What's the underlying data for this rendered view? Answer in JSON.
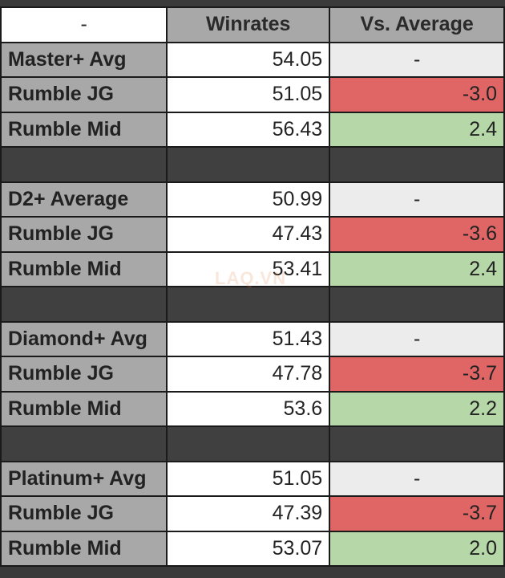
{
  "header": {
    "corner": "-",
    "col_winrates": "Winrates",
    "col_vs": "Vs. Average"
  },
  "groups": [
    {
      "avg": {
        "label": "Master+ Avg",
        "winrate": "54.05",
        "vs": "-"
      },
      "jg": {
        "label": "Rumble JG",
        "winrate": "51.05",
        "vs": "-3.0"
      },
      "mid": {
        "label": "Rumble Mid",
        "winrate": "56.43",
        "vs": "2.4"
      }
    },
    {
      "avg": {
        "label": "D2+ Average",
        "winrate": "50.99",
        "vs": "-"
      },
      "jg": {
        "label": "Rumble JG",
        "winrate": "47.43",
        "vs": "-3.6"
      },
      "mid": {
        "label": "Rumble Mid",
        "winrate": "53.41",
        "vs": "2.4"
      }
    },
    {
      "avg": {
        "label": "Diamond+ Avg",
        "winrate": "51.43",
        "vs": "-"
      },
      "jg": {
        "label": "Rumble JG",
        "winrate": "47.78",
        "vs": "-3.7"
      },
      "mid": {
        "label": "Rumble Mid",
        "winrate": "53.6",
        "vs": "2.2"
      }
    },
    {
      "avg": {
        "label": "Platinum+ Avg",
        "winrate": "51.05",
        "vs": "-"
      },
      "jg": {
        "label": "Rumble JG",
        "winrate": "47.39",
        "vs": "-3.7"
      },
      "mid": {
        "label": "Rumble Mid",
        "winrate": "53.07",
        "vs": "2.0"
      }
    }
  ],
  "colors": {
    "negative": "#e06666",
    "positive": "#b6d7a8",
    "header": "#a8a8a8",
    "spacer": "#404040"
  },
  "watermark": "LAQ.VN"
}
